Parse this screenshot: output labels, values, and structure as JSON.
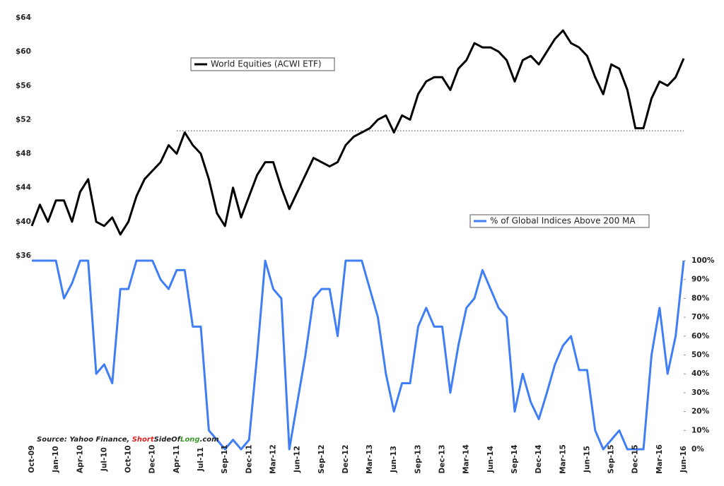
{
  "chart_data": {
    "type": "line",
    "categories": [
      "Oct-09",
      null,
      null,
      "Jan-10",
      null,
      null,
      "Apr-10",
      null,
      null,
      "Jul-10",
      null,
      null,
      "Oct-10",
      null,
      null,
      "Dec-10",
      null,
      null,
      "Apr-11",
      null,
      null,
      "Jul-11",
      null,
      null,
      "Sep-11",
      null,
      null,
      "Dec-11",
      null,
      null,
      "Mar-12",
      null,
      null,
      "Jun-12",
      null,
      null,
      "Sep-12",
      null,
      null,
      "Dec-12",
      null,
      null,
      "Mar-13",
      null,
      null,
      "Jun-13",
      null,
      null,
      "Sep-13",
      null,
      null,
      "Dec-13",
      null,
      null,
      "Mar-14",
      null,
      null,
      "Jun-14",
      null,
      null,
      "Sep-14",
      null,
      null,
      "Dec-14",
      null,
      null,
      "Mar-15",
      null,
      null,
      "Jun-15",
      null,
      null,
      "Sep-15",
      null,
      null,
      "Dec-15",
      null,
      null,
      "Mar-16",
      null,
      null,
      "Jun-16"
    ],
    "series": [
      {
        "name": "World Equities (ACWI ETF)",
        "color": "#000000",
        "axis": "y",
        "values": [
          39.5,
          42,
          40,
          42.5,
          42.5,
          40,
          43.5,
          45,
          40,
          39.5,
          40.5,
          38.5,
          40,
          43,
          45,
          46,
          47,
          49,
          48,
          50.5,
          49,
          48,
          45,
          41,
          39.5,
          44,
          40.5,
          43,
          45.5,
          47,
          47,
          44,
          41.5,
          43.5,
          45.5,
          47.5,
          47,
          46.5,
          47,
          49,
          50,
          50.5,
          51,
          52,
          52.5,
          50.5,
          52.5,
          52,
          55,
          56.5,
          57,
          57,
          55.5,
          58,
          59,
          61,
          60.5,
          60.5,
          60,
          59,
          56.5,
          59,
          59.5,
          58.5,
          60,
          61.5,
          62.5,
          61,
          60.5,
          59.5,
          57,
          55,
          58.5,
          58,
          55.5,
          51,
          51,
          54.5,
          56.5,
          56,
          57,
          59.2
        ]
      },
      {
        "name": "% of Global Indices Above 200 MA",
        "color": "#3f7ef5",
        "axis": "y2",
        "values": [
          100,
          100,
          100,
          100,
          80,
          88,
          100,
          100,
          40,
          45,
          35,
          85,
          85,
          100,
          100,
          100,
          90,
          85,
          95,
          95,
          65,
          65,
          10,
          5,
          0,
          5,
          0,
          5,
          50,
          100,
          85,
          80,
          0,
          25,
          50,
          80,
          85,
          85,
          60,
          100,
          100,
          100,
          85,
          70,
          40,
          20,
          35,
          35,
          65,
          75,
          65,
          65,
          30,
          55,
          75,
          80,
          95,
          85,
          75,
          70,
          20,
          40,
          25,
          16,
          30,
          45,
          55,
          60,
          42,
          42,
          10,
          0,
          5,
          10,
          0,
          0,
          0,
          50,
          75,
          40,
          60,
          100
        ]
      }
    ],
    "ylim": [
      36,
      64
    ],
    "yticks": [
      {
        "value": 36,
        "label": "$36"
      },
      {
        "value": 40,
        "label": "$40"
      },
      {
        "value": 44,
        "label": "$44"
      },
      {
        "value": 48,
        "label": "$48"
      },
      {
        "value": 52,
        "label": "$52"
      },
      {
        "value": 56,
        "label": "$56"
      },
      {
        "value": 60,
        "label": "$60"
      },
      {
        "value": 64,
        "label": "$64"
      }
    ],
    "y2lim": [
      0,
      100
    ],
    "y2ticks": [
      {
        "value": 0,
        "label": "0%"
      },
      {
        "value": 10,
        "label": "10%"
      },
      {
        "value": 20,
        "label": "20%"
      },
      {
        "value": 30,
        "label": "30%"
      },
      {
        "value": 40,
        "label": "40%"
      },
      {
        "value": 50,
        "label": "50%"
      },
      {
        "value": 60,
        "label": "60%"
      },
      {
        "value": 70,
        "label": "70%"
      },
      {
        "value": 80,
        "label": "80%"
      },
      {
        "value": 90,
        "label": "90%"
      },
      {
        "value": 100,
        "label": "100%"
      }
    ],
    "reference_line": 50.7,
    "source": [
      "Source: Yahoo Finance, ",
      "Short",
      "SideOf",
      "Long",
      ".com"
    ],
    "grid": false
  }
}
